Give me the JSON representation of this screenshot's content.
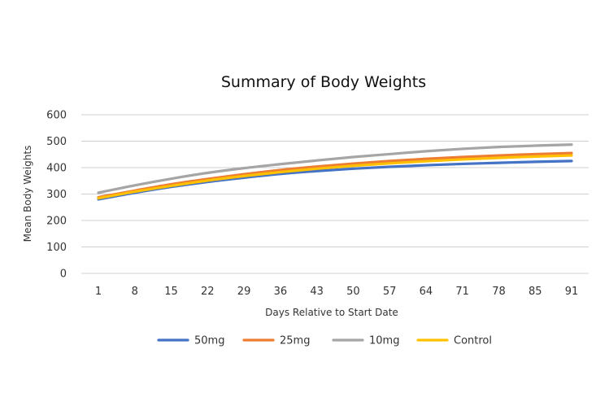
{
  "chart_data": {
    "type": "line",
    "title": "Summary of Body Weights",
    "xlabel": "Days Relative to Start Date",
    "ylabel": "Mean Body Weights",
    "categories": [
      "1",
      "8",
      "15",
      "22",
      "29",
      "36",
      "43",
      "50",
      "57",
      "64",
      "71",
      "78",
      "85",
      "91"
    ],
    "ylim": [
      0,
      600
    ],
    "yticks": [
      0,
      100,
      200,
      300,
      400,
      500,
      600
    ],
    "grid": true,
    "legend_position": "bottom",
    "series": [
      {
        "name": "50mg",
        "color": "#4472C4",
        "values": [
          280,
          305,
          327,
          346,
          362,
          376,
          387,
          396,
          403,
          409,
          414,
          418,
          422,
          425
        ]
      },
      {
        "name": "25mg",
        "color": "#ED7D31",
        "values": [
          288,
          313,
          337,
          357,
          375,
          391,
          404,
          415,
          425,
          433,
          440,
          446,
          451,
          455
        ]
      },
      {
        "name": "10mg",
        "color": "#A5A5A5",
        "values": [
          305,
          333,
          358,
          380,
          398,
          413,
          427,
          440,
          451,
          462,
          471,
          478,
          483,
          487
        ]
      },
      {
        "name": "Control",
        "color": "#FFC000",
        "values": [
          284,
          309,
          331,
          351,
          368,
          383,
          396,
          407,
          416,
          424,
          431,
          437,
          442,
          446
        ]
      }
    ]
  }
}
